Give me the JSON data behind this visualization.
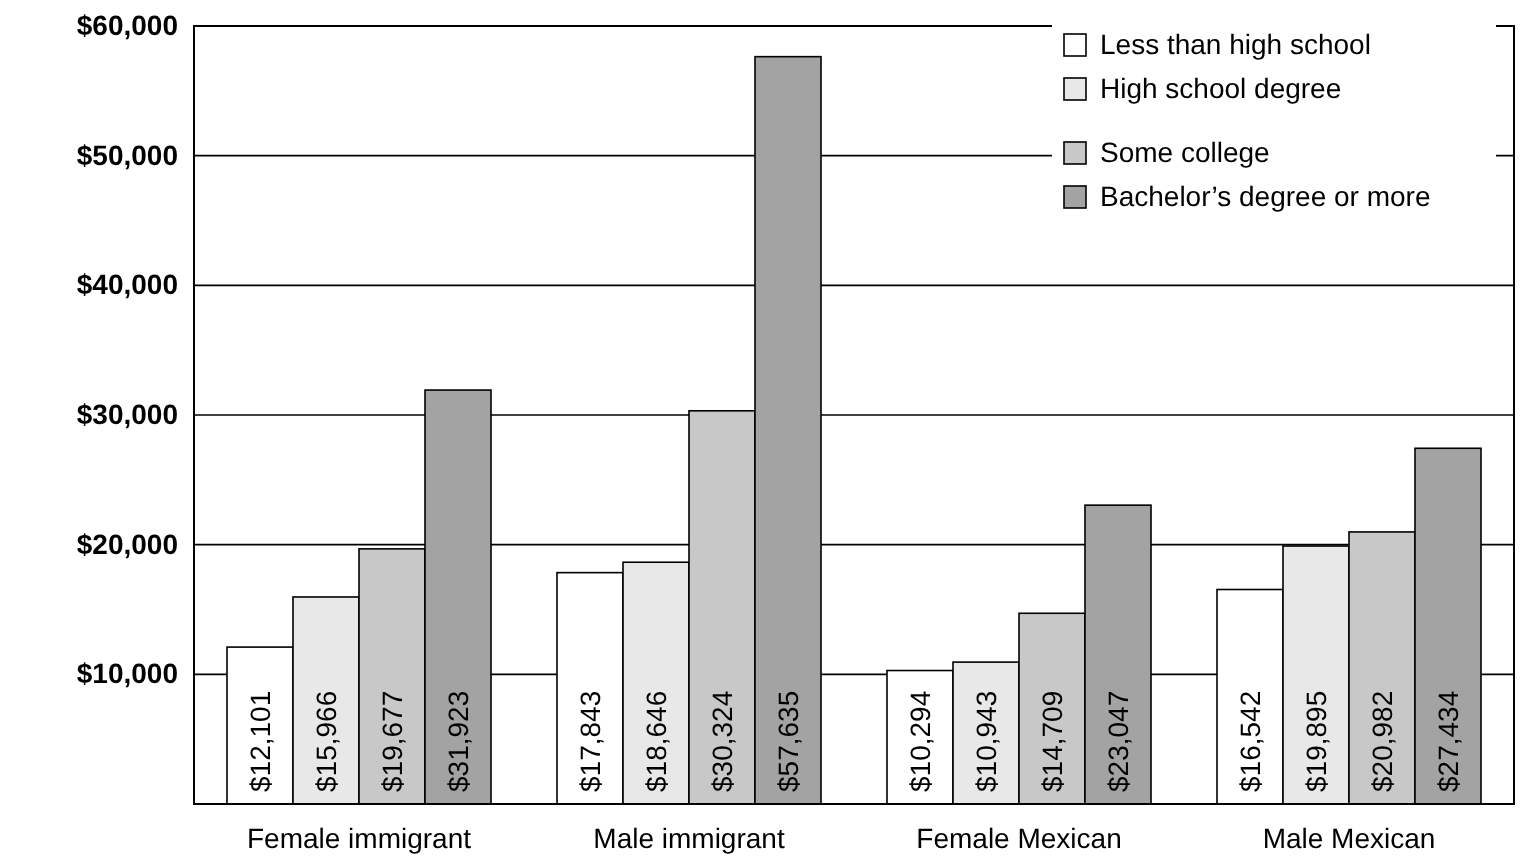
{
  "chart_data": {
    "type": "bar",
    "categories": [
      "Female immigrant",
      "Male immigrant",
      "Female Mexican",
      "Male Mexican"
    ],
    "series": [
      {
        "name": "Less than high school",
        "color": "#ffffff",
        "values": [
          12101,
          17843,
          10294,
          16542
        ],
        "value_labels": [
          "$12,101",
          "$17,843",
          "$10,294",
          "$16,542"
        ]
      },
      {
        "name": "High school degree",
        "color": "#e8e8e8",
        "values": [
          15966,
          18646,
          10943,
          19895
        ],
        "value_labels": [
          "$15,966",
          "$18,646",
          "$10,943",
          "$19,895"
        ]
      },
      {
        "name": "Some college",
        "color": "#c8c8c8",
        "values": [
          19677,
          30324,
          14709,
          20982
        ],
        "value_labels": [
          "$19,677",
          "$30,324",
          "$14,709",
          "$20,982"
        ]
      },
      {
        "name": "Bachelor’s degree or more",
        "color": "#a3a3a3",
        "values": [
          31923,
          57635,
          23047,
          27434
        ],
        "value_labels": [
          "$31,923",
          "$57,635",
          "$23,047",
          "$27,434"
        ]
      }
    ],
    "ylim": [
      0,
      60000
    ],
    "yticks": [
      {
        "value": 10000,
        "label": "$10,000"
      },
      {
        "value": 20000,
        "label": "$20,000"
      },
      {
        "value": 30000,
        "label": "$30,000"
      },
      {
        "value": 40000,
        "label": "$40,000"
      },
      {
        "value": 50000,
        "label": "$50,000"
      },
      {
        "value": 60000,
        "label": "$60,000"
      }
    ],
    "grid": "y",
    "legend": "top right"
  }
}
